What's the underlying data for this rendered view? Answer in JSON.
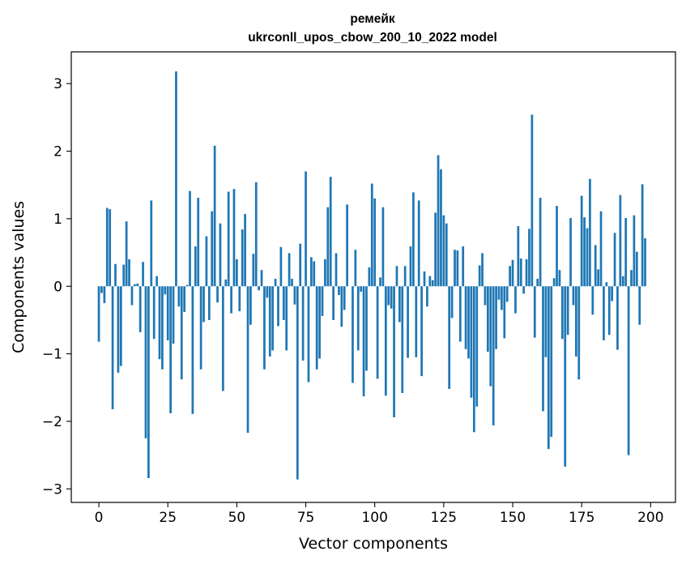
{
  "chart_data": {
    "type": "bar",
    "title_line1": "ремейк",
    "title_line2": "ukrconll_upos_cbow_200_10_2022 model",
    "xlabel": "Vector components",
    "ylabel": "Components values",
    "xlim": [
      -10,
      209
    ],
    "ylim": [
      -3.2,
      3.47
    ],
    "xticks": [
      0,
      25,
      50,
      75,
      100,
      125,
      150,
      175,
      200
    ],
    "yticks": [
      -3,
      -2,
      -1,
      0,
      1,
      2,
      3
    ],
    "xtick_labels": [
      "0",
      "25",
      "50",
      "75",
      "100",
      "125",
      "150",
      "175",
      "200"
    ],
    "ytick_labels": [
      "−3",
      "−2",
      "−1",
      "0",
      "1",
      "2",
      "3"
    ],
    "bar_color": "#1f77b4",
    "grid": false,
    "legend": "none",
    "values": [
      -0.82,
      -0.1,
      -0.25,
      1.16,
      1.14,
      -1.82,
      0.33,
      -1.28,
      -1.18,
      0.32,
      0.96,
      0.4,
      -0.28,
      0.03,
      0.04,
      -0.68,
      0.36,
      -2.25,
      -2.84,
      1.27,
      -0.78,
      0.15,
      -1.08,
      -1.23,
      -0.12,
      -0.8,
      -1.88,
      -0.85,
      3.18,
      -0.3,
      -1.38,
      -0.38,
      0.02,
      1.41,
      -1.89,
      0.59,
      1.31,
      -1.23,
      -0.53,
      0.74,
      -0.5,
      1.11,
      2.08,
      -0.24,
      0.93,
      -1.55,
      0.1,
      1.4,
      -0.4,
      1.44,
      0.4,
      -0.37,
      0.84,
      1.07,
      -2.17,
      -0.57,
      0.48,
      1.54,
      -0.06,
      0.24,
      -1.23,
      -0.17,
      -1.04,
      -0.95,
      0.11,
      -0.59,
      0.58,
      -0.5,
      -0.95,
      0.49,
      0.11,
      -0.27,
      -2.86,
      0.63,
      -1.1,
      1.7,
      -1.42,
      0.43,
      0.37,
      -1.23,
      -1.07,
      -0.44,
      0.4,
      1.17,
      1.62,
      -0.5,
      0.49,
      -0.13,
      -0.6,
      -0.35,
      1.21,
      0.0,
      -1.43,
      0.54,
      -0.95,
      -0.08,
      -1.63,
      -1.25,
      0.28,
      1.52,
      1.3,
      -1.37,
      0.13,
      1.17,
      -1.62,
      -0.28,
      -0.33,
      -1.94,
      0.3,
      -0.53,
      -1.58,
      0.3,
      -1.06,
      0.59,
      1.39,
      -1.05,
      1.27,
      -1.33,
      0.22,
      -0.3,
      0.15,
      0.09,
      1.09,
      1.94,
      1.73,
      1.05,
      0.93,
      -1.52,
      -0.47,
      0.54,
      0.53,
      -0.82,
      0.59,
      -0.93,
      -1.07,
      -1.65,
      -2.16,
      -1.78,
      0.31,
      0.49,
      -0.28,
      -0.97,
      -1.48,
      -2.06,
      -0.93,
      -0.2,
      -0.35,
      -0.77,
      -0.23,
      0.3,
      0.39,
      -0.4,
      0.89,
      0.41,
      -0.11,
      0.4,
      0.85,
      2.54,
      -0.76,
      0.11,
      1.31,
      -1.85,
      -1.05,
      -2.41,
      -2.23,
      0.12,
      1.19,
      0.24,
      -0.78,
      -2.67,
      -0.72,
      1.01,
      -0.28,
      -1.04,
      -1.38,
      1.34,
      1.02,
      0.86,
      1.59,
      -0.42,
      0.61,
      0.25,
      1.11,
      -0.8,
      0.06,
      -0.72,
      -0.22,
      0.79,
      -0.94,
      1.35,
      0.15,
      1.01,
      -2.5,
      0.24,
      1.05,
      0.51,
      -0.57,
      1.51,
      0.71,
      0.0
    ]
  }
}
